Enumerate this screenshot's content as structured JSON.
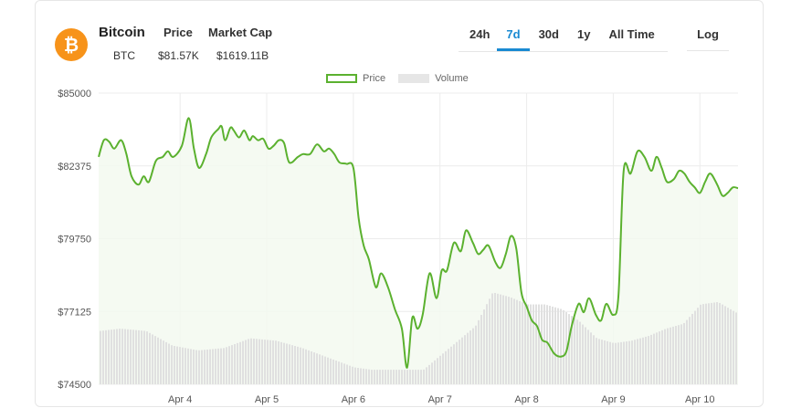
{
  "header": {
    "coin_name": "Bitcoin",
    "coin_symbol": "BTC",
    "logo_glyph": "₿",
    "price_label": "Price",
    "price_value": "$81.57K",
    "market_cap_label": "Market Cap",
    "market_cap_value": "$1619.11B"
  },
  "range_tabs": [
    {
      "label": "24h",
      "active": false
    },
    {
      "label": "7d",
      "active": true
    },
    {
      "label": "30d",
      "active": false
    },
    {
      "label": "1y",
      "active": false
    },
    {
      "label": "All Time",
      "active": false
    }
  ],
  "log_tab": {
    "label": "Log"
  },
  "colors": {
    "brand": "#f7931a",
    "price_line": "#5bb12f",
    "price_fill": "#f3f9f0",
    "volume": "#e0e0e0",
    "active_tab": "#1a8ad2"
  },
  "chart_data": {
    "type": "line",
    "title": "",
    "xlabel": "",
    "ylabel": "",
    "legend": [
      "Price",
      "Volume"
    ],
    "legend_position": "top-center",
    "ylim": [
      74500,
      85000
    ],
    "y_ticks": [
      "$85000",
      "$82375",
      "$79750",
      "$77125",
      "$74500"
    ],
    "y_tick_values": [
      85000,
      82375,
      79750,
      77125,
      74500
    ],
    "x_ticks": [
      "Apr 4",
      "Apr 5",
      "Apr 6",
      "Apr 7",
      "Apr 8",
      "Apr 9",
      "Apr 10"
    ],
    "x_tick_values": [
      1.0,
      2.0,
      3.0,
      4.0,
      5.0,
      6.0,
      7.0
    ],
    "xlim": [
      0.06,
      7.44
    ],
    "grid": true,
    "series": [
      {
        "name": "Price",
        "x": [
          0.06,
          0.12,
          0.18,
          0.24,
          0.32,
          0.38,
          0.44,
          0.52,
          0.58,
          0.64,
          0.72,
          0.8,
          0.86,
          0.92,
          1.02,
          1.1,
          1.16,
          1.22,
          1.3,
          1.36,
          1.44,
          1.48,
          1.52,
          1.58,
          1.62,
          1.68,
          1.74,
          1.8,
          1.84,
          1.9,
          1.96,
          2.02,
          2.08,
          2.14,
          2.2,
          2.26,
          2.36,
          2.42,
          2.5,
          2.58,
          2.66,
          2.72,
          2.78,
          2.84,
          2.92,
          3.0,
          3.06,
          3.12,
          3.18,
          3.26,
          3.32,
          3.4,
          3.48,
          3.56,
          3.62,
          3.68,
          3.74,
          3.8,
          3.88,
          3.96,
          4.02,
          4.08,
          4.16,
          4.24,
          4.3,
          4.38,
          4.44,
          4.5,
          4.56,
          4.64,
          4.7,
          4.76,
          4.82,
          4.88,
          4.94,
          5.0,
          5.06,
          5.12,
          5.18,
          5.24,
          5.32,
          5.4,
          5.46,
          5.52,
          5.6,
          5.66,
          5.72,
          5.8,
          5.86,
          5.92,
          6.0,
          6.06,
          6.12,
          6.2,
          6.28,
          6.36,
          6.44,
          6.5,
          6.56,
          6.62,
          6.7,
          6.76,
          6.82,
          6.88,
          6.94,
          7.0,
          7.06,
          7.12,
          7.2,
          7.26,
          7.32,
          7.38,
          7.44
        ],
        "values": [
          82700,
          83300,
          83250,
          83000,
          83300,
          82800,
          82000,
          81700,
          82000,
          81800,
          82550,
          82700,
          82900,
          82700,
          83100,
          84100,
          83000,
          82300,
          82800,
          83400,
          83700,
          83800,
          83300,
          83750,
          83650,
          83400,
          83650,
          83300,
          83450,
          83300,
          83350,
          83000,
          83100,
          83300,
          83200,
          82500,
          82700,
          82800,
          82800,
          83150,
          82900,
          83000,
          82800,
          82500,
          82450,
          82300,
          80500,
          79500,
          79000,
          78000,
          78500,
          78000,
          77200,
          76500,
          75100,
          76900,
          76500,
          77000,
          78500,
          77600,
          78600,
          78600,
          79600,
          79300,
          80050,
          79600,
          79200,
          79350,
          79500,
          78900,
          78700,
          79200,
          79850,
          79400,
          77800,
          77300,
          76800,
          76600,
          76100,
          76000,
          75600,
          75500,
          75700,
          76600,
          77400,
          77100,
          77600,
          77000,
          76800,
          77400,
          77000,
          77700,
          82200,
          82100,
          82900,
          82700,
          82200,
          82700,
          82300,
          81800,
          81900,
          82200,
          82100,
          81800,
          81600,
          81400,
          81800,
          82100,
          81700,
          81300,
          81400,
          81600,
          81570
        ],
        "color": "#5bb12f"
      },
      {
        "name": "Volume",
        "unit": "relative",
        "x": [
          0.06,
          0.3,
          0.6,
          0.9,
          1.2,
          1.5,
          1.8,
          2.1,
          2.4,
          2.7,
          3.0,
          3.2,
          3.5,
          3.8,
          4.0,
          4.2,
          4.4,
          4.6,
          4.8,
          5.0,
          5.2,
          5.4,
          5.6,
          5.8,
          6.0,
          6.2,
          6.4,
          6.6,
          6.8,
          7.0,
          7.2,
          7.44
        ],
        "values": [
          0.22,
          0.23,
          0.22,
          0.16,
          0.14,
          0.15,
          0.19,
          0.18,
          0.15,
          0.11,
          0.07,
          0.06,
          0.06,
          0.06,
          0.12,
          0.18,
          0.24,
          0.38,
          0.36,
          0.33,
          0.33,
          0.31,
          0.26,
          0.19,
          0.17,
          0.18,
          0.2,
          0.23,
          0.25,
          0.33,
          0.34,
          0.29
        ],
        "color": "#e0e0e0"
      }
    ]
  }
}
